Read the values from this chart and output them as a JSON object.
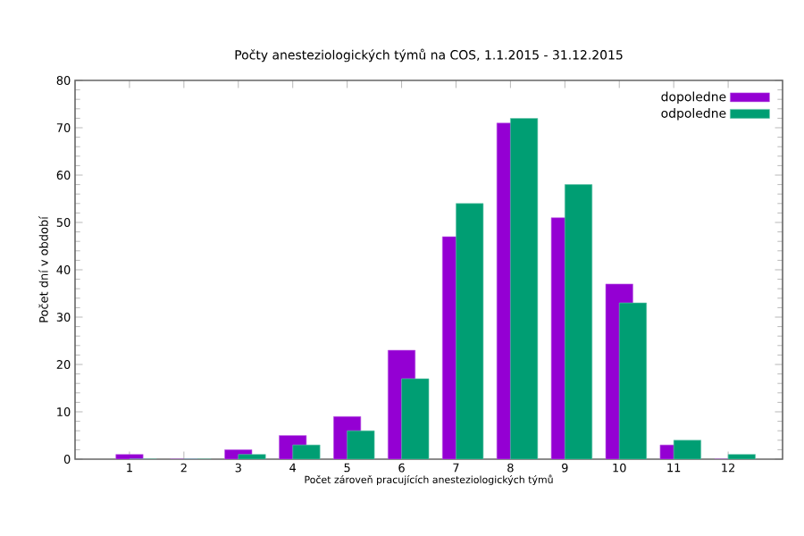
{
  "chart_data": {
    "type": "bar",
    "title": "Počty anesteziologických týmů na COS, 1.1.2015 - 31.12.2015",
    "xlabel": "Počet zároveň pracujících anesteziologických týmů",
    "ylabel": "Počet dní v období",
    "x": [
      1,
      2,
      3,
      4,
      5,
      6,
      7,
      8,
      9,
      10,
      11,
      12
    ],
    "xlim": [
      0,
      13
    ],
    "xticks": [
      1,
      2,
      3,
      4,
      5,
      6,
      7,
      8,
      9,
      10,
      11,
      12
    ],
    "ylim": [
      0,
      80
    ],
    "yticks": [
      0,
      10,
      20,
      30,
      40,
      50,
      60,
      70,
      80
    ],
    "legend": "top right",
    "series": [
      {
        "name": "dopoledne",
        "color": "#9400d3",
        "values": [
          1,
          0,
          2,
          5,
          9,
          23,
          47,
          71,
          51,
          37,
          3,
          0
        ]
      },
      {
        "name": "odpoledne",
        "color": "#009e73",
        "values": [
          0,
          0,
          1,
          3,
          6,
          17,
          54,
          72,
          58,
          33,
          4,
          1
        ]
      }
    ]
  }
}
